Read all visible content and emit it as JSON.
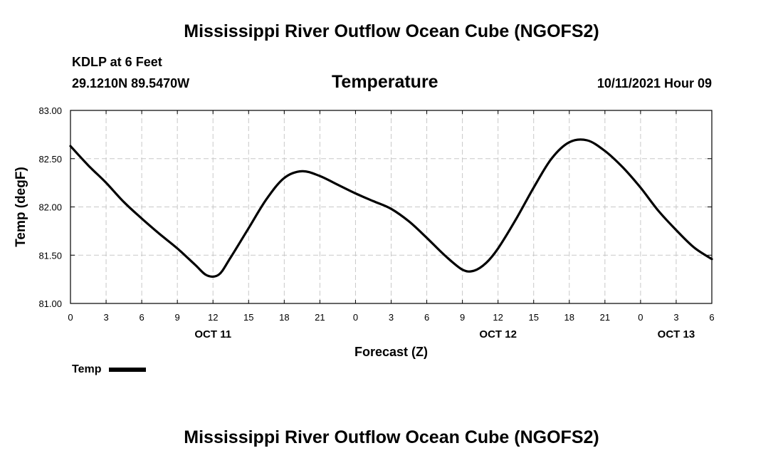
{
  "header": {
    "title": "Mississippi River Outflow Ocean Cube (NGOFS2)",
    "station": "KDLP at 6 Feet",
    "coords": "29.1210N  89.5470W",
    "datetime": "10/11/2021 Hour 09"
  },
  "footer": {
    "title": "Mississippi River Outflow Ocean Cube (NGOFS2)"
  },
  "legend": {
    "label": "Temp"
  },
  "colors": {
    "line": "#000000",
    "grid": "#c8c8c8"
  },
  "chart_data": {
    "type": "line",
    "title": "Temperature",
    "xlabel": "Forecast (Z)",
    "ylabel": "Temp (degF)",
    "xlim": [
      0,
      54
    ],
    "ylim": [
      81.0,
      83.0
    ],
    "grid": true,
    "x_tick_values": [
      0,
      3,
      6,
      9,
      12,
      15,
      18,
      21,
      24,
      27,
      30,
      33,
      36,
      39,
      42,
      45,
      48,
      51,
      54
    ],
    "x_tick_labels": [
      "0",
      "3",
      "6",
      "9",
      "12",
      "15",
      "18",
      "21",
      "0",
      "3",
      "6",
      "9",
      "12",
      "15",
      "18",
      "21",
      "0",
      "3",
      "6"
    ],
    "y_tick_values": [
      81.0,
      81.5,
      82.0,
      82.5,
      83.0
    ],
    "y_tick_labels": [
      "81.00",
      "81.50",
      "82.00",
      "82.50",
      "83.00"
    ],
    "day_labels": [
      {
        "x": 12,
        "label": "OCT 11"
      },
      {
        "x": 36,
        "label": "OCT 12"
      },
      {
        "x": 51,
        "label": "OCT 13"
      }
    ],
    "series": [
      {
        "name": "Temp",
        "x": [
          0,
          1.5,
          3,
          4.5,
          6,
          7.5,
          9,
          10.5,
          11.5,
          12.5,
          13.5,
          15,
          16.5,
          18,
          19.5,
          21,
          22.5,
          24,
          25.5,
          27,
          28.5,
          30,
          31.5,
          33,
          34,
          35,
          36,
          37.5,
          39,
          40.5,
          42,
          43.5,
          45,
          46.5,
          48,
          49.5,
          51,
          52.5,
          54
        ],
        "y": [
          82.63,
          82.43,
          82.25,
          82.05,
          81.88,
          81.72,
          81.57,
          81.4,
          81.29,
          81.3,
          81.48,
          81.78,
          82.08,
          82.3,
          82.37,
          82.32,
          82.23,
          82.14,
          82.06,
          81.98,
          81.85,
          81.68,
          81.5,
          81.35,
          81.34,
          81.42,
          81.57,
          81.87,
          82.2,
          82.5,
          82.67,
          82.69,
          82.58,
          82.41,
          82.2,
          81.96,
          81.76,
          81.58,
          81.46
        ]
      }
    ]
  }
}
